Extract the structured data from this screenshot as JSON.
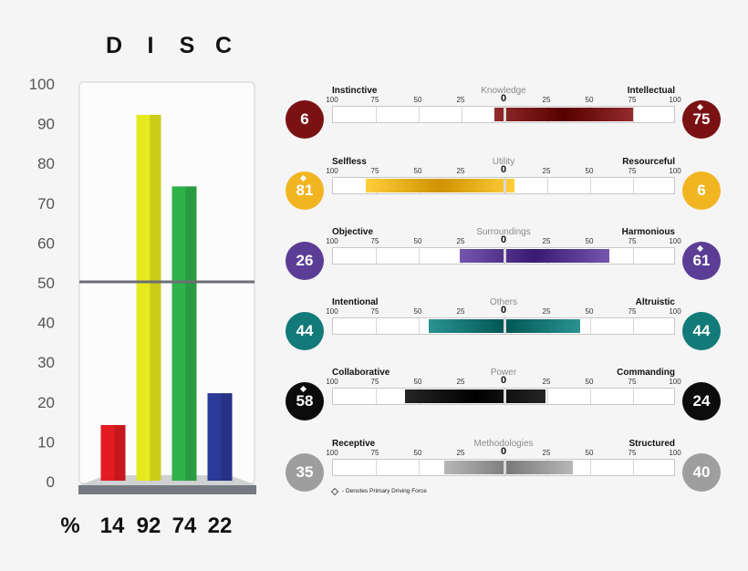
{
  "chart_data": [
    {
      "type": "bar",
      "title_letters": [
        "D",
        "I",
        "S",
        "C"
      ],
      "categories": [
        "D",
        "I",
        "S",
        "C"
      ],
      "values": [
        14,
        92,
        74,
        22
      ],
      "colors": [
        "#e31b23",
        "#e6e91e",
        "#2fb24a",
        "#2b3a98"
      ],
      "ylim": [
        0,
        100
      ],
      "yticks": [
        "0",
        "10",
        "20",
        "30",
        "40",
        "50",
        "60",
        "70",
        "80",
        "90",
        "100"
      ],
      "reference_line": 50,
      "percent_symbol": "%",
      "percent_labels": [
        "14",
        "92",
        "74",
        "22"
      ]
    },
    {
      "type": "bar",
      "scale_ticks": [
        "100",
        "75",
        "50",
        "25",
        "0",
        "25",
        "50",
        "75",
        "100"
      ],
      "footnote": "- Denotes Primary Driving Force",
      "rows": [
        {
          "left_label": "Instinctive",
          "center_label": "Knowledge",
          "right_label": "Intellectual",
          "left_value": "6",
          "right_value": "75",
          "left_num": 6,
          "right_num": 75,
          "color": "#7a1214",
          "left_diamond": false,
          "right_diamond": true
        },
        {
          "left_label": "Selfless",
          "center_label": "Utility",
          "right_label": "Resourceful",
          "left_value": "81",
          "right_value": "6",
          "left_num": 81,
          "right_num": 6,
          "color": "#f2b522",
          "left_diamond": true,
          "right_diamond": false
        },
        {
          "left_label": "Objective",
          "center_label": "Surroundings",
          "right_label": "Harmonious",
          "left_value": "26",
          "right_value": "61",
          "left_num": 26,
          "right_num": 61,
          "color": "#5b3d95",
          "left_diamond": false,
          "right_diamond": true
        },
        {
          "left_label": "Intentional",
          "center_label": "Others",
          "right_label": "Altruistic",
          "left_value": "44",
          "right_value": "44",
          "left_num": 44,
          "right_num": 44,
          "color": "#127a78",
          "left_diamond": false,
          "right_diamond": false
        },
        {
          "left_label": "Collaborative",
          "center_label": "Power",
          "right_label": "Commanding",
          "left_value": "58",
          "right_value": "24",
          "left_num": 58,
          "right_num": 24,
          "color": "#0c0c0c",
          "left_diamond": true,
          "right_diamond": false
        },
        {
          "left_label": "Receptive",
          "center_label": "Methodologies",
          "right_label": "Structured",
          "left_value": "35",
          "right_value": "40",
          "left_num": 35,
          "right_num": 40,
          "color": "#9e9e9e",
          "left_diamond": false,
          "right_diamond": false
        }
      ]
    }
  ]
}
